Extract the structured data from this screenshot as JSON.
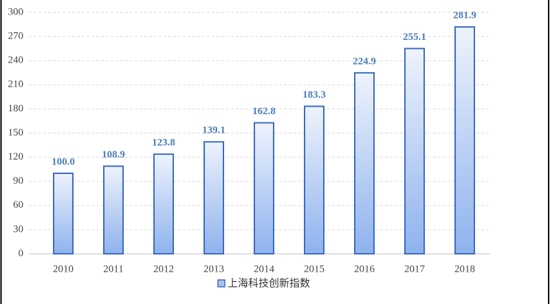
{
  "chart_data": {
    "type": "bar",
    "categories": [
      "2010",
      "2011",
      "2012",
      "2013",
      "2014",
      "2015",
      "2016",
      "2017",
      "2018"
    ],
    "series": [
      {
        "name": "上海科技创新指数",
        "color": "#3a6bbf",
        "values": [
          100.0,
          108.9,
          123.8,
          139.1,
          162.8,
          183.3,
          224.9,
          255.1,
          281.9
        ],
        "value_labels": [
          "100.0",
          "108.9",
          "123.8",
          "139.1",
          "162.8",
          "183.3",
          "224.9",
          "255.1",
          "281.9"
        ]
      }
    ],
    "ylim": [
      0,
      300
    ],
    "yticks": [
      0,
      30,
      60,
      90,
      120,
      150,
      180,
      210,
      240,
      270,
      300
    ],
    "grid": true,
    "legend": "bottom"
  }
}
